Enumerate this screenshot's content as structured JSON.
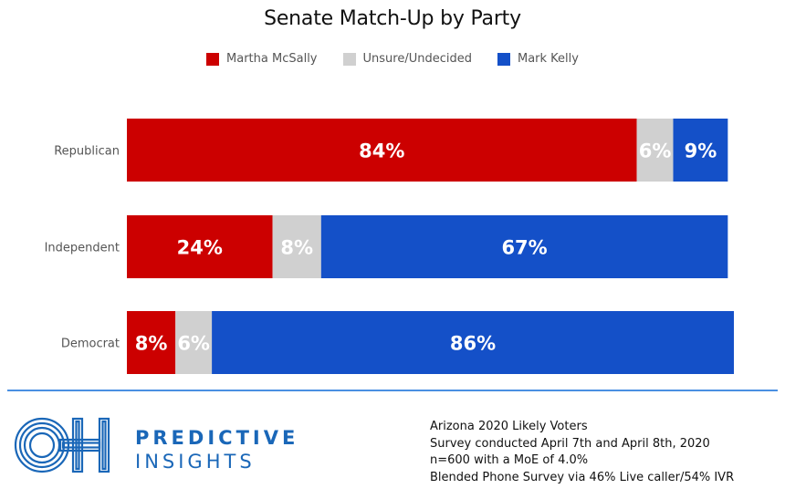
{
  "chart_data": {
    "type": "bar",
    "orientation": "horizontal",
    "stacked": true,
    "title": "Senate Match-Up by Party",
    "categories": [
      "Republican",
      "Independent",
      "Democrat"
    ],
    "series": [
      {
        "name": "Martha McSally",
        "color": "#cc0000",
        "values": [
          84,
          24,
          8
        ]
      },
      {
        "name": "Unsure/Undecided",
        "color": "#d0d0d0",
        "values": [
          6,
          8,
          6
        ]
      },
      {
        "name": "Mark Kelly",
        "color": "#1450c8",
        "values": [
          9,
          67,
          86
        ]
      }
    ],
    "value_suffix": "%",
    "legend_position": "top",
    "grid": false,
    "xlim": [
      0,
      100
    ]
  },
  "footer": {
    "brand_line1": "PREDICTIVE",
    "brand_line2": "INSIGHTS",
    "logo_letters": "OH",
    "notes": [
      "Arizona 2020 Likely Voters",
      "Survey conducted April 7th and April 8th, 2020",
      "n=600 with a MoE of 4.0%",
      "Blended Phone Survey via 46% Live caller/54% IVR"
    ]
  }
}
